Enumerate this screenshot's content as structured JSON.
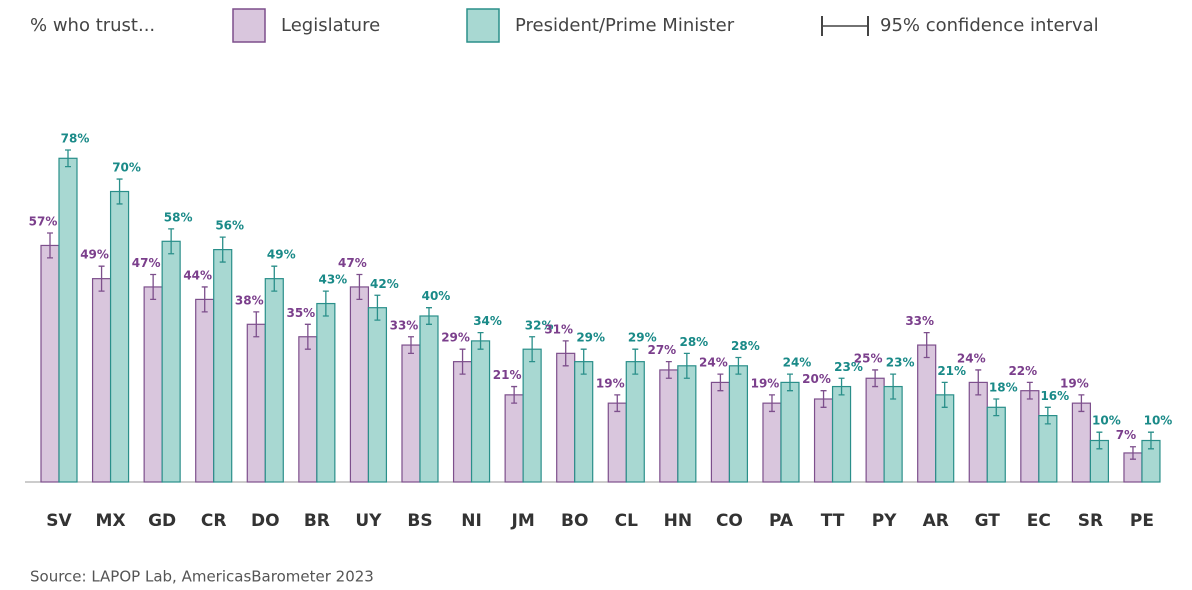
{
  "chart_data": {
    "type": "bar",
    "legend_title": "% who trust...",
    "ci_label": "95% confidence interval",
    "source": "Source: LAPOP Lab, AmericasBarometer 2023",
    "categories": [
      "SV",
      "MX",
      "GD",
      "CR",
      "DO",
      "BR",
      "UY",
      "BS",
      "NI",
      "JM",
      "BO",
      "CL",
      "HN",
      "CO",
      "PA",
      "TT",
      "PY",
      "AR",
      "GT",
      "EC",
      "SR",
      "PE"
    ],
    "series": [
      {
        "name": "Legislature",
        "color": "#d9c6dd",
        "edge": "#7d4f8c",
        "label_color": "#7b3f8c",
        "values": [
          57,
          49,
          47,
          44,
          38,
          35,
          47,
          33,
          29,
          21,
          31,
          19,
          27,
          24,
          19,
          20,
          25,
          33,
          24,
          22,
          19,
          7
        ],
        "value_labels": [
          "57%",
          "49%",
          "47%",
          "44%",
          "38%",
          "35%",
          "47%",
          "33%",
          "29%",
          "21%",
          "31%",
          "19%",
          "27%",
          "24%",
          "19%",
          "20%",
          "25%",
          "33%",
          "24%",
          "22%",
          "19%",
          "7%"
        ],
        "errors": [
          3,
          3,
          3,
          3,
          3,
          3,
          3,
          2,
          3,
          2,
          3,
          2,
          2,
          2,
          2,
          2,
          2,
          3,
          3,
          2,
          2,
          1.5
        ]
      },
      {
        "name": "President/Prime Minister",
        "color": "#a8d8d2",
        "edge": "#2a8f8a",
        "label_color": "#1a8a88",
        "values": [
          78,
          70,
          58,
          56,
          49,
          43,
          42,
          40,
          34,
          32,
          29,
          29,
          28,
          28,
          24,
          23,
          23,
          21,
          18,
          16,
          10,
          10
        ],
        "value_labels": [
          "78%",
          "70%",
          "58%",
          "56%",
          "49%",
          "43%",
          "42%",
          "40%",
          "34%",
          "32%",
          "29%",
          "29%",
          "28%",
          "28%",
          "24%",
          "23%",
          "23%",
          "21%",
          "18%",
          "16%",
          "10%",
          "10%"
        ],
        "errors": [
          2,
          3,
          3,
          3,
          3,
          3,
          3,
          2,
          2,
          3,
          3,
          3,
          3,
          2,
          2,
          2,
          3,
          3,
          2,
          2,
          2,
          2
        ]
      }
    ]
  }
}
